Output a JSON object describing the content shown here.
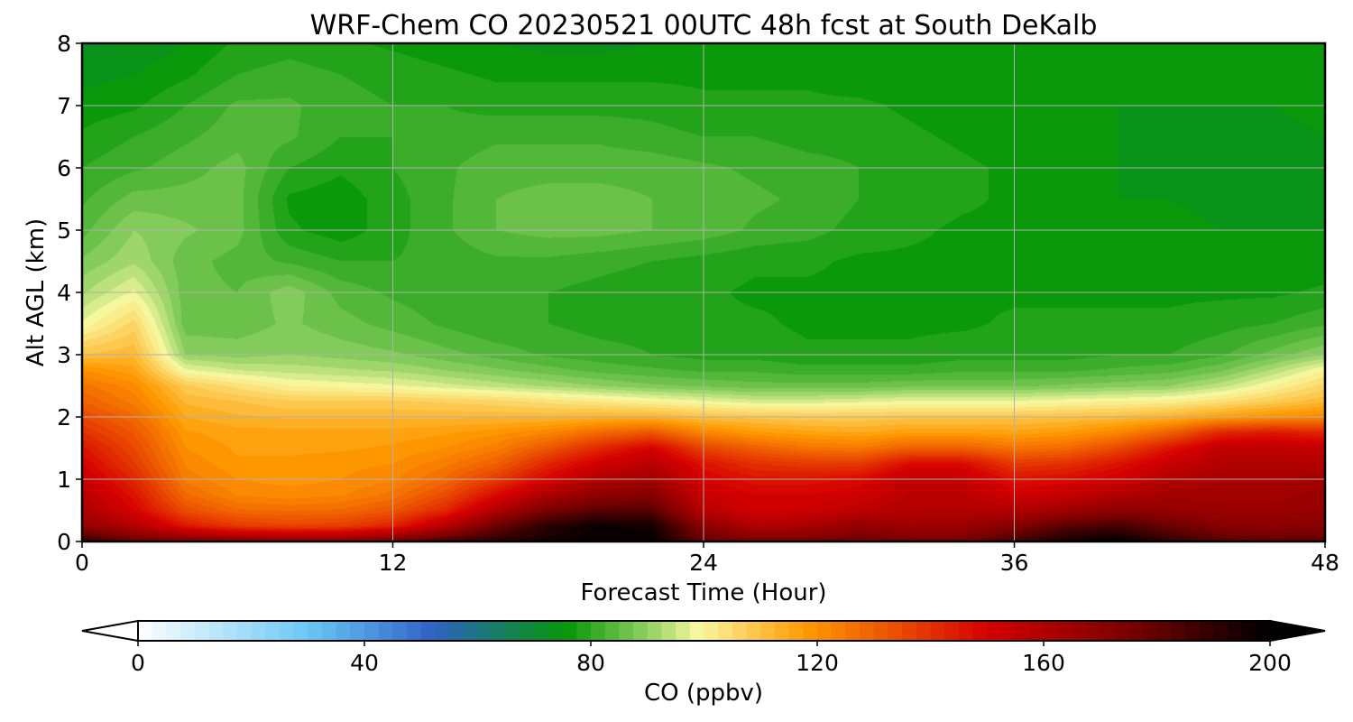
{
  "chart_data": {
    "type": "heatmap",
    "title": "WRF-Chem CO  20230521 00UTC 48h fcst at South DeKalb",
    "xlabel": "Forecast Time (Hour)",
    "ylabel": "Alt AGL (km)",
    "xlim": [
      0,
      48
    ],
    "ylim": [
      0,
      8
    ],
    "xticks": [
      0,
      12,
      24,
      36,
      48
    ],
    "yticks": [
      0,
      1,
      2,
      3,
      4,
      5,
      6,
      7,
      8
    ],
    "grid": true,
    "colorbar": {
      "label": "CO  (ppbv)",
      "range": [
        0,
        200
      ],
      "ticks": [
        0,
        40,
        80,
        120,
        160,
        200
      ],
      "extend": "both",
      "stops": [
        {
          "v": 0,
          "c": "#ffffff"
        },
        {
          "v": 30,
          "c": "#6ac8f5"
        },
        {
          "v": 52,
          "c": "#2f62c8"
        },
        {
          "v": 64,
          "c": "#157f62"
        },
        {
          "v": 76,
          "c": "#089808"
        },
        {
          "v": 90,
          "c": "#8fd062"
        },
        {
          "v": 99,
          "c": "#f8f8a0"
        },
        {
          "v": 118,
          "c": "#ff9a00"
        },
        {
          "v": 150,
          "c": "#d60000"
        },
        {
          "v": 175,
          "c": "#7a0000"
        },
        {
          "v": 200,
          "c": "#000000"
        }
      ]
    },
    "x": [
      0,
      2,
      4,
      6,
      8,
      10,
      12,
      14,
      16,
      18,
      20,
      22,
      24,
      26,
      28,
      30,
      32,
      34,
      36,
      38,
      40,
      42,
      44,
      46,
      48
    ],
    "y": [
      0,
      0.25,
      0.5,
      0.75,
      1,
      1.25,
      1.5,
      1.75,
      2,
      2.25,
      2.5,
      2.75,
      3,
      3.5,
      4,
      4.5,
      5,
      5.5,
      6,
      6.5,
      7,
      7.5,
      8
    ],
    "values": [
      [
        190,
        178,
        175,
        172,
        170,
        170,
        176,
        186,
        192,
        196,
        200,
        200,
        180,
        175,
        176,
        178,
        176,
        176,
        186,
        196,
        200,
        190,
        182,
        180,
        180
      ],
      [
        168,
        160,
        145,
        138,
        136,
        137,
        143,
        158,
        178,
        192,
        198,
        196,
        170,
        160,
        162,
        168,
        165,
        166,
        172,
        182,
        186,
        178,
        172,
        170,
        172
      ],
      [
        162,
        150,
        134,
        128,
        127,
        128,
        132,
        142,
        160,
        175,
        182,
        182,
        158,
        152,
        153,
        157,
        160,
        160,
        160,
        165,
        170,
        168,
        166,
        166,
        168
      ],
      [
        158,
        146,
        128,
        122,
        121,
        122,
        126,
        134,
        148,
        162,
        170,
        172,
        154,
        150,
        150,
        152,
        158,
        158,
        152,
        155,
        160,
        164,
        164,
        164,
        166
      ],
      [
        154,
        142,
        124,
        120,
        119,
        120,
        122,
        128,
        138,
        150,
        160,
        164,
        150,
        146,
        146,
        148,
        156,
        155,
        146,
        148,
        152,
        160,
        162,
        162,
        164
      ],
      [
        150,
        138,
        122,
        118,
        118,
        119,
        120,
        124,
        130,
        142,
        152,
        158,
        146,
        140,
        138,
        138,
        148,
        148,
        138,
        140,
        146,
        154,
        160,
        160,
        160
      ],
      [
        146,
        135,
        120,
        117,
        117,
        117,
        118,
        120,
        124,
        132,
        142,
        150,
        136,
        130,
        126,
        125,
        130,
        130,
        126,
        128,
        135,
        146,
        156,
        156,
        155
      ],
      [
        140,
        132,
        118,
        116,
        116,
        116,
        116,
        117,
        119,
        122,
        128,
        132,
        122,
        118,
        116,
        115,
        117,
        117,
        116,
        118,
        122,
        130,
        142,
        145,
        142
      ],
      [
        135,
        128,
        115,
        113,
        112,
        112,
        112,
        112,
        112,
        112,
        113,
        113,
        110,
        109,
        108,
        108,
        109,
        109,
        109,
        110,
        111,
        113,
        117,
        120,
        122
      ],
      [
        130,
        124,
        112,
        110,
        108,
        108,
        108,
        107,
        106,
        104,
        102,
        100,
        98,
        96,
        96,
        97,
        98,
        98,
        98,
        99,
        100,
        101,
        104,
        108,
        112
      ],
      [
        126,
        121,
        108,
        104,
        100,
        99,
        98,
        96,
        94,
        92,
        90,
        88,
        87,
        86,
        86,
        86,
        87,
        87,
        87,
        88,
        89,
        90,
        94,
        100,
        106
      ],
      [
        120,
        116,
        98,
        95,
        94,
        93,
        92,
        90,
        88,
        86,
        84,
        83,
        82,
        82,
        81,
        81,
        81,
        82,
        82,
        82,
        83,
        84,
        87,
        93,
        100
      ],
      [
        110,
        112,
        90,
        89,
        90,
        89,
        88,
        86,
        84,
        82,
        81,
        80,
        79,
        79,
        78,
        78,
        78,
        79,
        79,
        79,
        80,
        80,
        82,
        86,
        90
      ],
      [
        98,
        106,
        86,
        86,
        88,
        86,
        84,
        82,
        80,
        80,
        79,
        79,
        78,
        78,
        77,
        77,
        77,
        77,
        78,
        78,
        78,
        78,
        79,
        80,
        82
      ],
      [
        92,
        98,
        86,
        85,
        89,
        84,
        82,
        81,
        80,
        80,
        79,
        78,
        78,
        77,
        77,
        77,
        77,
        77,
        77,
        77,
        77,
        77,
        77,
        77,
        78
      ],
      [
        88,
        92,
        86,
        84,
        82,
        80,
        80,
        81,
        82,
        82,
        81,
        80,
        79,
        78,
        78,
        77,
        77,
        77,
        77,
        77,
        76,
        76,
        76,
        76,
        76
      ],
      [
        84,
        90,
        88,
        86,
        78,
        76,
        79,
        82,
        85,
        86,
        86,
        85,
        84,
        82,
        81,
        79,
        78,
        77,
        77,
        76,
        76,
        76,
        75,
        75,
        75
      ],
      [
        82,
        86,
        86,
        86,
        77,
        76,
        79,
        82,
        85,
        86,
        86,
        85,
        84,
        83,
        82,
        80,
        79,
        78,
        77,
        76,
        75,
        75,
        74,
        74,
        74
      ],
      [
        80,
        82,
        84,
        86,
        80,
        78,
        80,
        82,
        84,
        84,
        84,
        84,
        83,
        82,
        81,
        80,
        79,
        78,
        77,
        76,
        75,
        74,
        74,
        74,
        74
      ],
      [
        78,
        80,
        82,
        84,
        83,
        80,
        80,
        81,
        82,
        82,
        82,
        81,
        80,
        80,
        79,
        79,
        78,
        77,
        76,
        75,
        75,
        74,
        74,
        74,
        75
      ],
      [
        76,
        77,
        80,
        83,
        83,
        81,
        80,
        80,
        79,
        79,
        79,
        79,
        78,
        78,
        78,
        78,
        77,
        76,
        76,
        75,
        75,
        75,
        75,
        75,
        76
      ],
      [
        74,
        75,
        77,
        80,
        81,
        80,
        79,
        78,
        77,
        77,
        77,
        77,
        77,
        77,
        77,
        76,
        76,
        76,
        75,
        75,
        75,
        75,
        75,
        76,
        77
      ],
      [
        72,
        73,
        75,
        78,
        79,
        78,
        77,
        76,
        75,
        74,
        74,
        75,
        75,
        76,
        76,
        75,
        75,
        75,
        75,
        75,
        75,
        75,
        75,
        76,
        77
      ]
    ]
  }
}
